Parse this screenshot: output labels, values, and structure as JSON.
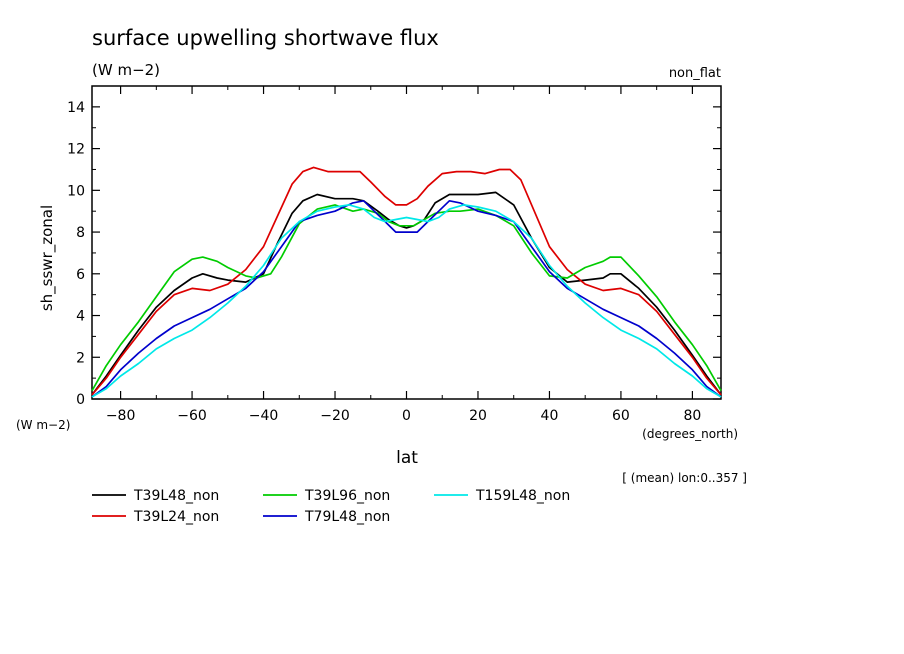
{
  "chart_data": {
    "type": "line",
    "title": "surface upwelling shortwave flux",
    "subtitle": "(W m−2)",
    "corner_label": "non_flat",
    "ylabel": "sh_sswr_zonal",
    "yunits": "(W m−2)",
    "xlabel": "lat",
    "xunits": "(degrees_north)",
    "note": "[ (mean) lon:0..357 ]",
    "xlim": [
      -88,
      88
    ],
    "ylim": [
      0,
      15
    ],
    "xticks": [
      -80,
      -60,
      -40,
      -20,
      0,
      20,
      40,
      60,
      80
    ],
    "xtick_labels": [
      "−80",
      "−60",
      "−40",
      "−20",
      "0",
      "20",
      "40",
      "60",
      "80"
    ],
    "yticks": [
      0,
      2,
      4,
      6,
      8,
      10,
      12,
      14
    ],
    "ytick_labels": [
      "0",
      "2",
      "4",
      "6",
      "8",
      "10",
      "12",
      "14"
    ],
    "grid": false,
    "legend_position": "bottom",
    "series": [
      {
        "name": "T39L48_non",
        "color": "#000000",
        "x": [
          -88,
          -84,
          -80,
          -75,
          -70,
          -65,
          -60,
          -57,
          -53,
          -50,
          -45,
          -40,
          -36,
          -32,
          -29,
          -25,
          -20,
          -15,
          -12,
          -8,
          -5,
          -2,
          0,
          2,
          5,
          8,
          12,
          15,
          20,
          25,
          30,
          35,
          40,
          45,
          50,
          55,
          57,
          60,
          65,
          70,
          75,
          80,
          84,
          88
        ],
        "y": [
          0.2,
          1.1,
          2.1,
          3.3,
          4.4,
          5.2,
          5.8,
          6.0,
          5.8,
          5.7,
          5.6,
          6.0,
          7.5,
          8.9,
          9.5,
          9.8,
          9.6,
          9.6,
          9.5,
          9.0,
          8.6,
          8.3,
          8.2,
          8.3,
          8.6,
          9.4,
          9.8,
          9.8,
          9.8,
          9.9,
          9.3,
          7.7,
          6.3,
          5.6,
          5.7,
          5.8,
          6.0,
          6.0,
          5.3,
          4.4,
          3.3,
          2.1,
          1.1,
          0.2
        ]
      },
      {
        "name": "T39L24_non",
        "color": "#dd0000",
        "x": [
          -88,
          -84,
          -80,
          -75,
          -70,
          -65,
          -60,
          -55,
          -50,
          -45,
          -40,
          -36,
          -32,
          -29,
          -26,
          -22,
          -18,
          -13,
          -10,
          -6,
          -3,
          0,
          3,
          6,
          10,
          14,
          18,
          22,
          26,
          29,
          32,
          36,
          40,
          45,
          50,
          55,
          60,
          65,
          70,
          75,
          80,
          84,
          88
        ],
        "y": [
          0.2,
          1.0,
          2.0,
          3.1,
          4.2,
          5.0,
          5.3,
          5.2,
          5.5,
          6.2,
          7.3,
          8.8,
          10.3,
          10.9,
          11.1,
          10.9,
          10.9,
          10.9,
          10.4,
          9.7,
          9.3,
          9.3,
          9.6,
          10.2,
          10.8,
          10.9,
          10.9,
          10.8,
          11.0,
          11.0,
          10.5,
          8.9,
          7.3,
          6.2,
          5.5,
          5.2,
          5.3,
          5.0,
          4.2,
          3.1,
          2.0,
          1.0,
          0.2
        ]
      },
      {
        "name": "T39L96_non",
        "color": "#00cc00",
        "x": [
          -88,
          -84,
          -80,
          -75,
          -70,
          -65,
          -60,
          -57,
          -53,
          -50,
          -45,
          -42,
          -38,
          -35,
          -30,
          -25,
          -20,
          -15,
          -12,
          -8,
          -5,
          -2,
          0,
          2,
          5,
          8,
          12,
          15,
          20,
          25,
          30,
          35,
          40,
          45,
          50,
          55,
          57,
          60,
          65,
          70,
          75,
          80,
          84,
          88
        ],
        "y": [
          0.4,
          1.6,
          2.6,
          3.7,
          4.9,
          6.1,
          6.7,
          6.8,
          6.6,
          6.3,
          5.9,
          5.8,
          6.0,
          6.8,
          8.4,
          9.1,
          9.3,
          9.0,
          9.1,
          8.9,
          8.5,
          8.3,
          8.3,
          8.3,
          8.6,
          8.9,
          9.0,
          9.0,
          9.1,
          8.8,
          8.3,
          7.0,
          5.9,
          5.8,
          6.3,
          6.6,
          6.8,
          6.8,
          5.9,
          4.9,
          3.7,
          2.6,
          1.6,
          0.4
        ]
      },
      {
        "name": "T79L48_non",
        "color": "#0000cc",
        "x": [
          -88,
          -84,
          -80,
          -75,
          -70,
          -65,
          -60,
          -55,
          -50,
          -45,
          -40,
          -35,
          -30,
          -25,
          -20,
          -15,
          -12,
          -9,
          -6,
          -3,
          0,
          3,
          6,
          9,
          12,
          15,
          20,
          25,
          30,
          35,
          40,
          45,
          50,
          55,
          60,
          65,
          70,
          75,
          80,
          84,
          88
        ],
        "y": [
          0.1,
          0.6,
          1.4,
          2.2,
          2.9,
          3.5,
          3.9,
          4.3,
          4.8,
          5.3,
          6.1,
          7.3,
          8.5,
          8.8,
          9.0,
          9.4,
          9.5,
          9.0,
          8.5,
          8.0,
          8.0,
          8.0,
          8.5,
          9.0,
          9.5,
          9.4,
          9.0,
          8.8,
          8.5,
          7.3,
          6.1,
          5.3,
          4.8,
          4.3,
          3.9,
          3.5,
          2.9,
          2.2,
          1.4,
          0.6,
          0.1
        ]
      },
      {
        "name": "T159L48_non",
        "color": "#00e8e8",
        "x": [
          -88,
          -84,
          -80,
          -75,
          -70,
          -65,
          -60,
          -55,
          -50,
          -45,
          -40,
          -35,
          -30,
          -25,
          -20,
          -16,
          -12,
          -9,
          -6,
          -3,
          0,
          3,
          6,
          9,
          12,
          16,
          20,
          25,
          30,
          35,
          40,
          45,
          50,
          55,
          60,
          65,
          70,
          75,
          80,
          84,
          88
        ],
        "y": [
          0.1,
          0.5,
          1.1,
          1.7,
          2.4,
          2.9,
          3.3,
          3.9,
          4.6,
          5.4,
          6.4,
          7.7,
          8.5,
          9.0,
          9.2,
          9.3,
          9.1,
          8.7,
          8.5,
          8.6,
          8.7,
          8.6,
          8.5,
          8.7,
          9.1,
          9.3,
          9.2,
          9.0,
          8.5,
          7.7,
          6.4,
          5.4,
          4.6,
          3.9,
          3.3,
          2.9,
          2.4,
          1.7,
          1.1,
          0.5,
          0.1
        ]
      }
    ]
  }
}
